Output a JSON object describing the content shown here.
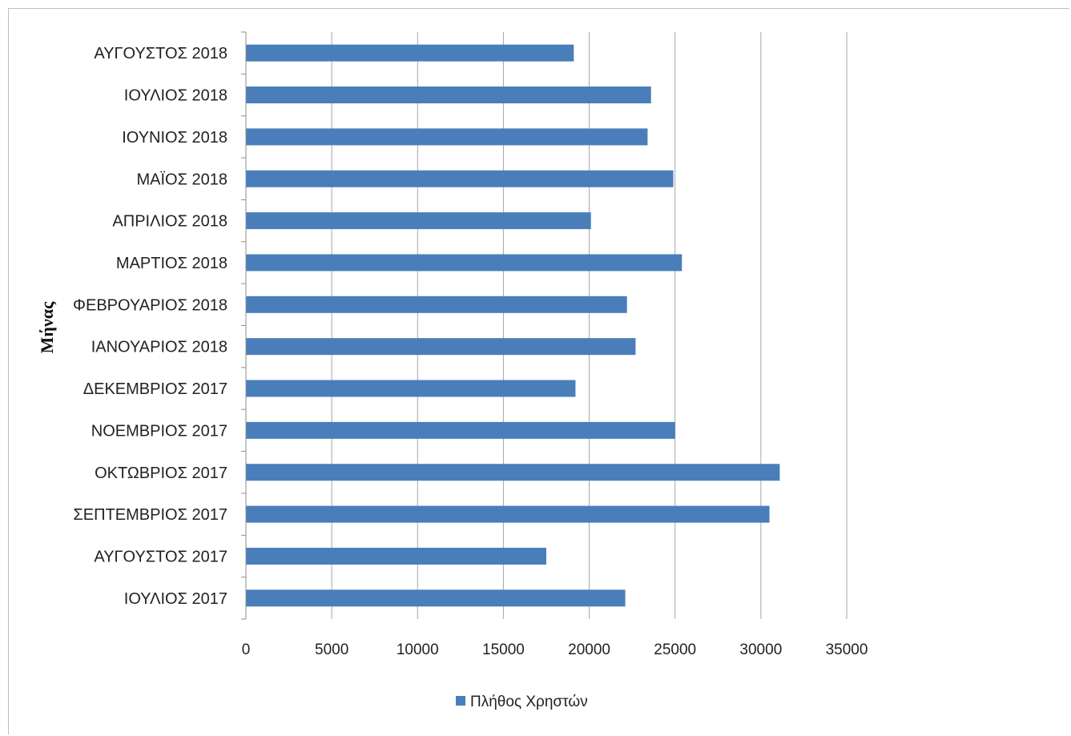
{
  "chart_data": {
    "type": "bar",
    "orientation": "horizontal",
    "title": "",
    "ylabel": "Μήνας",
    "xlabel": "",
    "categories": [
      "ΑΥΓΟΥΣΤΟΣ 2018",
      "ΙΟΥΛΙΟΣ 2018",
      "ΙΟΥΝΙΟΣ 2018",
      "ΜΑΪΟΣ 2018",
      "ΑΠΡΙΛΙΟΣ 2018",
      "ΜΑΡΤΙΟΣ 2018",
      "ΦΕΒΡΟΥΑΡΙΟΣ 2018",
      "ΙΑΝΟΥΑΡΙΟΣ 2018",
      "ΔΕΚΕΜΒΡΙΟΣ 2017",
      "ΝΟΕΜΒΡΙΟΣ 2017",
      "ΟΚΤΩΒΡΙΟΣ 2017",
      "ΣΕΠΤΕΜΒΡΙΟΣ 2017",
      "ΑΥΓΟΥΣΤΟΣ 2017",
      "ΙΟΥΛΙΟΣ 2017"
    ],
    "series": [
      {
        "name": "Πλήθος Χρηστών",
        "color": "#4a7ebb",
        "values": [
          19100,
          23600,
          23400,
          24900,
          20100,
          25400,
          22200,
          22700,
          19200,
          25000,
          31100,
          30500,
          17500,
          22100
        ]
      }
    ],
    "xlim": [
      0,
      35000
    ],
    "xticks": [
      0,
      5000,
      10000,
      15000,
      20000,
      25000,
      30000,
      35000
    ],
    "grid": "vertical",
    "legend_position": "bottom"
  }
}
